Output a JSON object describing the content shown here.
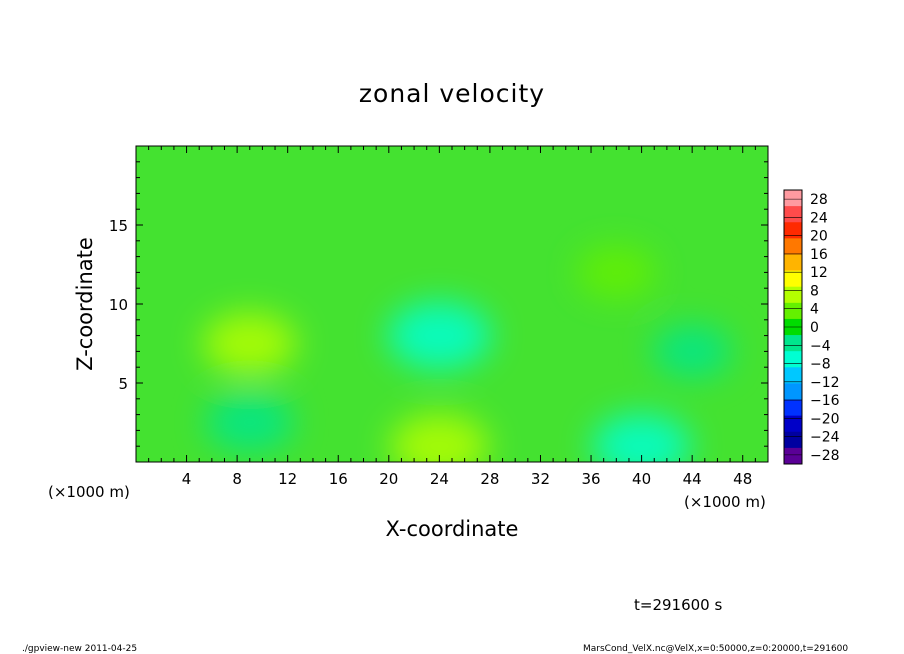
{
  "chart_data": {
    "type": "heatmap",
    "title": "zonal velocity",
    "xlabel": "X-coordinate",
    "ylabel": "Z-coordinate",
    "x_unit": "(×1000 m)",
    "xlim": [
      0,
      50
    ],
    "ylim": [
      0,
      20
    ],
    "x_ticks": [
      4,
      8,
      12,
      16,
      20,
      24,
      28,
      32,
      36,
      40,
      44,
      48
    ],
    "y_ticks": [
      5,
      10,
      15
    ],
    "colorbar": {
      "ticks": [
        28,
        24,
        20,
        16,
        12,
        8,
        4,
        0,
        -4,
        -8,
        -12,
        -16,
        -20,
        -24,
        -28
      ],
      "labels": [
        "28",
        "24",
        "20",
        "16",
        "12",
        "8",
        "4",
        "0",
        "−4",
        "−8",
        "−12",
        "−16",
        "−20",
        "−24",
        "−28"
      ],
      "range": [
        -30,
        30
      ],
      "colors_top_to_bottom": [
        "#ff9aa0",
        "#ff4b4b",
        "#ff2a00",
        "#ff7800",
        "#ffb400",
        "#ffff00",
        "#b4ff00",
        "#64f000",
        "#00dc00",
        "#00e68c",
        "#00ffd2",
        "#00c8ff",
        "#0096ff",
        "#0032ff",
        "#0000c8",
        "#0000a0",
        "#5a0096"
      ]
    },
    "field_features": [
      {
        "feature": "background",
        "x": 25,
        "z": 10,
        "value": 0
      },
      {
        "feature": "positive patch",
        "x": 9,
        "z": 7.5,
        "value": 6
      },
      {
        "feature": "positive patch",
        "x": 24,
        "z": 1,
        "value": 7
      },
      {
        "feature": "negative patch",
        "x": 24,
        "z": 8,
        "value": -8
      },
      {
        "feature": "negative patch",
        "x": 9,
        "z": 2.5,
        "value": -5
      },
      {
        "feature": "negative patch",
        "x": 40,
        "z": 1,
        "value": -7
      },
      {
        "feature": "negative patch",
        "x": 44,
        "z": 7,
        "value": -3
      },
      {
        "feature": "positive patch",
        "x": 38,
        "z": 12,
        "value": 3
      }
    ]
  },
  "time_label": "t=291600 s",
  "footer": {
    "left": "./gpview-new  2011-04-25",
    "right": "MarsCond_VelX.nc@VelX,x=0:50000,z=0:20000,t=291600"
  }
}
